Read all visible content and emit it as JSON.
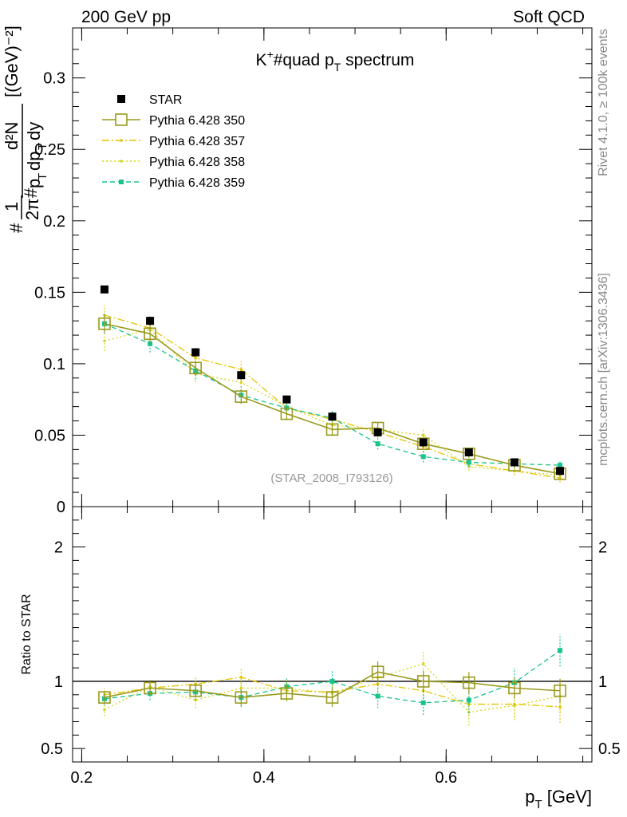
{
  "header": {
    "left": "200 GeV pp",
    "right": "Soft QCD"
  },
  "side_labels": {
    "rivet": "Rivet 4.1.0, ≥ 100k events",
    "mcplots": "mcplots.cern.ch [arXiv:1306.3436]"
  },
  "colors": {
    "star": "#000000",
    "p350": "#9a9a1e",
    "p357": "#e5c400",
    "p358": "#d7d71e",
    "p359": "#19c38c"
  },
  "chart_data": [
    {
      "type": "scatter",
      "title": "K⁺#quad p_T spectrum",
      "title_parts": {
        "k": "K",
        "plus": "+",
        "mid": "#quad p",
        "sub": "T",
        "tail": " spectrum"
      },
      "ylabel_parts": {
        "hash1": "#",
        "one": "1",
        "twopi": "2π",
        "hash2": "#",
        "num": "d²N",
        "den_p": "p",
        "den_t1": "T",
        "den_dp": "dp",
        "den_t2": "T",
        "den_dy": "dy",
        "units": "[(GeV)⁻²]"
      },
      "watermark": "(STAR_2008_I793126)",
      "xlim": [
        0.19,
        0.76
      ],
      "ylim": [
        0,
        0.335
      ],
      "yticks": [
        {
          "v": 0,
          "label": "0"
        },
        {
          "v": 0.05,
          "label": "0.05"
        },
        {
          "v": 0.1,
          "label": "0.1"
        },
        {
          "v": 0.15,
          "label": "0.15"
        },
        {
          "v": 0.2,
          "label": "0.2"
        },
        {
          "v": 0.25,
          "label": "0.25"
        },
        {
          "v": 0.3,
          "label": "0.3"
        }
      ],
      "legend": [
        {
          "key": "star",
          "label": "STAR"
        },
        {
          "key": "p350",
          "label": "Pythia 6.428 350"
        },
        {
          "key": "p357",
          "label": "Pythia 6.428 357"
        },
        {
          "key": "p358",
          "label": "Pythia 6.428 358"
        },
        {
          "key": "p359",
          "label": "Pythia 6.428 359"
        }
      ],
      "x": [
        0.225,
        0.275,
        0.325,
        0.375,
        0.425,
        0.475,
        0.525,
        0.575,
        0.625,
        0.675,
        0.725
      ],
      "series": [
        {
          "key": "star",
          "name": "STAR",
          "values": [
            0.152,
            0.13,
            0.108,
            0.092,
            0.075,
            0.063,
            0.052,
            0.045,
            0.038,
            0.031,
            0.025
          ],
          "errors": [
            0.002,
            0.003,
            0.003,
            0.003,
            0.002,
            0.002,
            0.002,
            0.002,
            0.001,
            0.001,
            0.001
          ]
        },
        {
          "key": "p350",
          "name": "Pythia 6.428 350",
          "values": [
            0.128,
            0.121,
            0.097,
            0.077,
            0.065,
            0.054,
            0.055,
            0.044,
            0.037,
            0.029,
            0.023
          ],
          "errors": [
            0.006,
            0.006,
            0.005,
            0.005,
            0.004,
            0.004,
            0.004,
            0.003,
            0.003,
            0.002,
            0.002
          ]
        },
        {
          "key": "p357",
          "name": "Pythia 6.428 357",
          "values": [
            0.134,
            0.125,
            0.104,
            0.096,
            0.069,
            0.061,
            0.052,
            0.042,
            0.03,
            0.025,
            0.02
          ],
          "errors": [
            0.007,
            0.006,
            0.006,
            0.006,
            0.005,
            0.005,
            0.004,
            0.004,
            0.003,
            0.003,
            0.003
          ]
        },
        {
          "key": "p358",
          "name": "Pythia 6.428 358",
          "values": [
            0.116,
            0.124,
            0.093,
            0.087,
            0.07,
            0.057,
            0.054,
            0.05,
            0.028,
            0.025,
            0.022
          ],
          "errors": [
            0.007,
            0.006,
            0.006,
            0.006,
            0.005,
            0.005,
            0.004,
            0.004,
            0.003,
            0.003,
            0.003
          ]
        },
        {
          "key": "p359",
          "name": "Pythia 6.428 359",
          "values": [
            0.128,
            0.114,
            0.095,
            0.078,
            0.069,
            0.062,
            0.044,
            0.035,
            0.031,
            0.03,
            0.029
          ],
          "errors": [
            0.007,
            0.006,
            0.006,
            0.006,
            0.005,
            0.005,
            0.004,
            0.004,
            0.003,
            0.003,
            0.003
          ]
        }
      ]
    },
    {
      "type": "scatter",
      "ylabel": "Ratio to STAR",
      "xlabel": "p_T [GeV]",
      "xlabel_parts": {
        "p": "p",
        "sub": "T",
        "unit": " [GeV]"
      },
      "reference_line": 1,
      "xlim": [
        0.19,
        0.76
      ],
      "ylim": [
        0.4,
        2.3
      ],
      "xticks": [
        {
          "v": 0.2,
          "label": "0.2"
        },
        {
          "v": 0.4,
          "label": "0.4"
        },
        {
          "v": 0.6,
          "label": "0.6"
        }
      ],
      "yticks": [
        {
          "v": 0.5,
          "label": "0.5"
        },
        {
          "v": 1,
          "label": "1"
        },
        {
          "v": 2,
          "label": "2"
        }
      ],
      "x": [
        0.225,
        0.275,
        0.325,
        0.375,
        0.425,
        0.475,
        0.525,
        0.575,
        0.625,
        0.675,
        0.725
      ],
      "series": [
        {
          "key": "p350",
          "name": "Pythia 6.428 350",
          "values": [
            0.88,
            0.95,
            0.93,
            0.88,
            0.91,
            0.88,
            1.07,
            1.0,
            0.99,
            0.95,
            0.93
          ],
          "errors": [
            0.04,
            0.05,
            0.05,
            0.06,
            0.06,
            0.07,
            0.08,
            0.08,
            0.08,
            0.08,
            0.09
          ]
        },
        {
          "key": "p357",
          "name": "Pythia 6.428 357",
          "values": [
            0.9,
            0.95,
            0.98,
            1.03,
            0.93,
            0.92,
            0.98,
            0.93,
            0.83,
            0.83,
            0.81
          ],
          "errors": [
            0.05,
            0.05,
            0.06,
            0.07,
            0.07,
            0.08,
            0.09,
            0.09,
            0.09,
            0.1,
            0.12
          ]
        },
        {
          "key": "p358",
          "name": "Pythia 6.428 358",
          "values": [
            0.79,
            0.96,
            0.86,
            0.95,
            0.95,
            0.91,
            1.03,
            1.13,
            0.77,
            0.82,
            0.89
          ],
          "errors": [
            0.05,
            0.05,
            0.06,
            0.07,
            0.07,
            0.08,
            0.09,
            0.09,
            0.1,
            0.11,
            0.12
          ]
        },
        {
          "key": "p359",
          "name": "Pythia 6.428 359",
          "values": [
            0.87,
            0.91,
            0.92,
            0.88,
            0.96,
            1.0,
            0.89,
            0.84,
            0.86,
            0.99,
            1.23
          ],
          "errors": [
            0.05,
            0.05,
            0.06,
            0.07,
            0.07,
            0.08,
            0.09,
            0.09,
            0.1,
            0.11,
            0.12
          ]
        }
      ]
    }
  ]
}
